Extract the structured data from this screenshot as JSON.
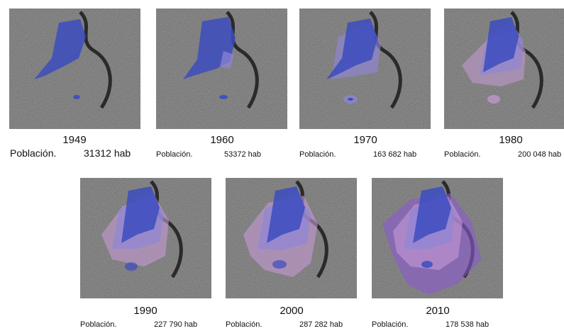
{
  "panels": [
    {
      "year": "1949",
      "poblacion_label": "Población.",
      "value": "31312 hab"
    },
    {
      "year": "1960",
      "poblacion_label": "Población.",
      "value": "53372 hab"
    },
    {
      "year": "1970",
      "poblacion_label": "Población.",
      "value": "163 682 hab"
    },
    {
      "year": "1980",
      "poblacion_label": "Población.",
      "value": "200 048 hab"
    },
    {
      "year": "1990",
      "poblacion_label": "Población.",
      "value": "227 790 hab"
    },
    {
      "year": "2000",
      "poblacion_label": "Población.",
      "value": "287 282 hab"
    },
    {
      "year": "2010",
      "poblacion_label": "Población.",
      "value": "178 538 hab"
    }
  ],
  "colors": {
    "ground": "#6f6f6f",
    "urban_core": "#3c4cc0",
    "expansion_light": "#8f86d6",
    "expansion_pink": "#c79ad6",
    "expansion_violet": "#8a5ad0"
  }
}
